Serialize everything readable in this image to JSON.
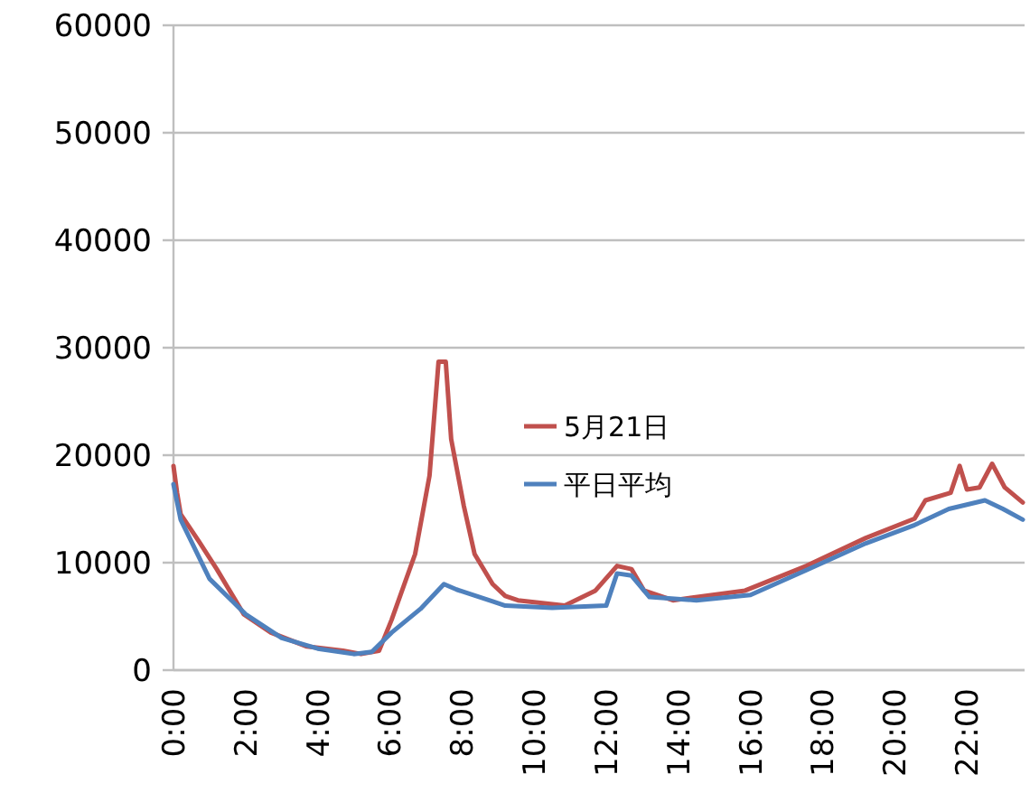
{
  "chart_data": {
    "type": "line",
    "xlim": [
      0,
      23.6
    ],
    "ylim": [
      0,
      60000
    ],
    "xticks": [
      {
        "value": 0,
        "label": "0:00"
      },
      {
        "value": 2,
        "label": "2:00"
      },
      {
        "value": 4,
        "label": "4:00"
      },
      {
        "value": 6,
        "label": "6:00"
      },
      {
        "value": 8,
        "label": "8:00"
      },
      {
        "value": 10,
        "label": "10:00"
      },
      {
        "value": 12,
        "label": "12:00"
      },
      {
        "value": 14,
        "label": "14:00"
      },
      {
        "value": 16,
        "label": "16:00"
      },
      {
        "value": 18,
        "label": "18:00"
      },
      {
        "value": 20,
        "label": "20:00"
      },
      {
        "value": 22,
        "label": "22:00"
      }
    ],
    "yticks": [
      0,
      10000,
      20000,
      30000,
      40000,
      50000,
      60000
    ],
    "grid": "y",
    "legend": "center",
    "line_style": "solid",
    "series": [
      {
        "name": "5月21日",
        "color": "#c0504d",
        "x": [
          0,
          0.1,
          0.2,
          0.7,
          1.2,
          1.95,
          2.7,
          3.7,
          4.7,
          5.2,
          5.7,
          6.05,
          6.7,
          7.1,
          7.35,
          7.55,
          7.7,
          8.05,
          8.35,
          8.85,
          9.2,
          9.55,
          10.85,
          11.7,
          12.3,
          12.7,
          13.05,
          13.85,
          15.85,
          17.55,
          19.2,
          20.55,
          20.85,
          21.55,
          21.8,
          22.0,
          22.35,
          22.7,
          23.05,
          23.55
        ],
        "values": [
          19000,
          16500,
          14500,
          12000,
          9400,
          5200,
          3500,
          2200,
          1800,
          1500,
          1800,
          4700,
          10800,
          18100,
          28700,
          28700,
          21500,
          15300,
          10800,
          8000,
          6900,
          6500,
          6000,
          7400,
          9700,
          9400,
          7400,
          6500,
          7400,
          9700,
          12300,
          14100,
          15800,
          16500,
          19000,
          16800,
          17000,
          19200,
          17000,
          15600
        ]
      },
      {
        "name": "平日平均",
        "color": "#4f81bd",
        "x": [
          0,
          0.2,
          1,
          2,
          3,
          4,
          5,
          5.5,
          6.05,
          6.85,
          7.5,
          7.85,
          8.85,
          9.2,
          10.5,
          12,
          12.3,
          12.7,
          13.2,
          14.5,
          16,
          17.55,
          19.2,
          20.55,
          21.5,
          22.5,
          23,
          23.55
        ],
        "values": [
          17300,
          14000,
          8500,
          5200,
          3000,
          2000,
          1500,
          1700,
          3500,
          5700,
          8000,
          7500,
          6400,
          6000,
          5800,
          6000,
          9000,
          8800,
          6800,
          6500,
          7000,
          9300,
          11800,
          13500,
          15000,
          15800,
          15000,
          14000
        ]
      }
    ]
  }
}
